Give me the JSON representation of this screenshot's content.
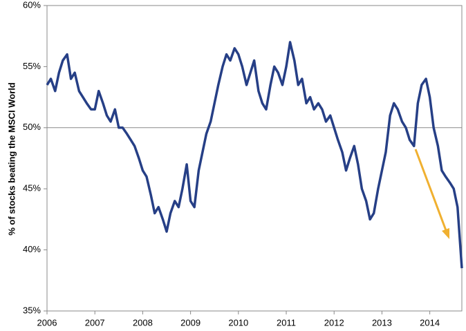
{
  "chart_data": {
    "type": "line",
    "ylabel": "% of stocks beating the MSCI World",
    "x": [
      2006.0,
      2006.08,
      2006.17,
      2006.25,
      2006.33,
      2006.42,
      2006.5,
      2006.58,
      2006.67,
      2006.75,
      2006.83,
      2006.92,
      2007.0,
      2007.08,
      2007.17,
      2007.25,
      2007.33,
      2007.42,
      2007.5,
      2007.58,
      2007.67,
      2007.75,
      2007.83,
      2007.92,
      2008.0,
      2008.08,
      2008.17,
      2008.25,
      2008.33,
      2008.42,
      2008.5,
      2008.58,
      2008.67,
      2008.75,
      2008.83,
      2008.92,
      2009.0,
      2009.08,
      2009.17,
      2009.25,
      2009.33,
      2009.42,
      2009.5,
      2009.58,
      2009.67,
      2009.75,
      2009.83,
      2009.92,
      2010.0,
      2010.08,
      2010.17,
      2010.25,
      2010.33,
      2010.42,
      2010.5,
      2010.58,
      2010.67,
      2010.75,
      2010.83,
      2010.92,
      2011.0,
      2011.08,
      2011.17,
      2011.25,
      2011.33,
      2011.42,
      2011.5,
      2011.58,
      2011.67,
      2011.75,
      2011.83,
      2011.92,
      2012.0,
      2012.08,
      2012.17,
      2012.25,
      2012.33,
      2012.42,
      2012.5,
      2012.58,
      2012.67,
      2012.75,
      2012.83,
      2012.92,
      2013.0,
      2013.08,
      2013.17,
      2013.25,
      2013.33,
      2013.42,
      2013.5,
      2013.58,
      2013.67,
      2013.75,
      2013.83,
      2013.92,
      2014.0,
      2014.08,
      2014.17,
      2014.25,
      2014.33,
      2014.42,
      2014.5,
      2014.58,
      2014.67
    ],
    "series": [
      {
        "color": "#263f86",
        "values": [
          53.5,
          54,
          53,
          54.5,
          55.5,
          56,
          54,
          54.5,
          53,
          52.5,
          52,
          51.5,
          51.5,
          53,
          52,
          51,
          50.5,
          51.5,
          50,
          50,
          49.5,
          49,
          48.5,
          47.5,
          46.5,
          46,
          44.5,
          43,
          43.5,
          42.5,
          41.5,
          43,
          44,
          43.5,
          45,
          47,
          44,
          43.5,
          46.5,
          48,
          49.5,
          50.5,
          52,
          53.5,
          55,
          56,
          55.5,
          56.5,
          56,
          55,
          53.5,
          54.5,
          55.5,
          53,
          52,
          51.5,
          53.5,
          55,
          54.5,
          53.5,
          55,
          57,
          55.5,
          53.5,
          54,
          52,
          52.5,
          51.5,
          52,
          51.5,
          50.5,
          51,
          50,
          49,
          48,
          46.5,
          47.5,
          48.5,
          47,
          45,
          44,
          42.5,
          43,
          45,
          46.5,
          48,
          51,
          52,
          51.5,
          50.5,
          50,
          49,
          48.5,
          52,
          53.5,
          54,
          52.5,
          50,
          48.5,
          46.5,
          46,
          45.5,
          45,
          43.5,
          38.5
        ]
      }
    ],
    "xlim": [
      2006,
      2014.67
    ],
    "xticks": [
      2006,
      2007,
      2008,
      2009,
      2010,
      2011,
      2012,
      2013,
      2014
    ],
    "ylim": [
      35,
      60
    ],
    "yticks": [
      {
        "value": 35,
        "label": "35%"
      },
      {
        "value": 40,
        "label": "40%"
      },
      {
        "value": 45,
        "label": "45%"
      },
      {
        "value": 50,
        "label": "50%"
      },
      {
        "value": 55,
        "label": "55%"
      },
      {
        "value": 60,
        "label": "60%"
      }
    ],
    "hline": 50
  }
}
